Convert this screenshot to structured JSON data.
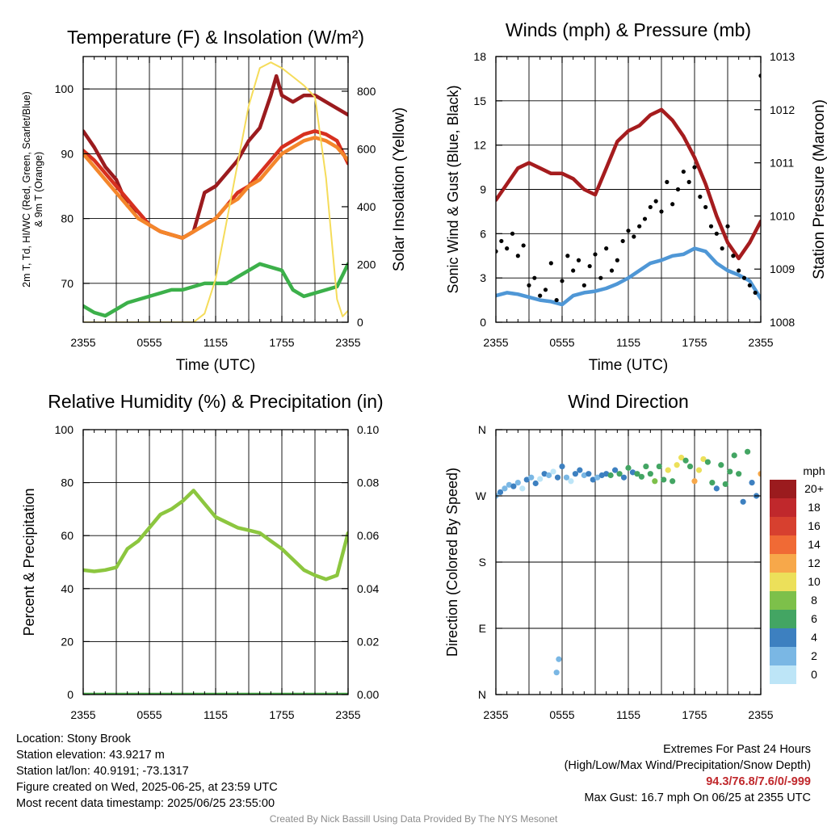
{
  "chart_data": [
    {
      "id": "temperature",
      "type": "line",
      "title": "Temperature (F) & Insolation (W/m²)",
      "xlabel": "Time (UTC)",
      "ylabel": "2m T, Td, HI/WC (Red, Green, Scarlet/Blue) & 9m T (Orange)",
      "y2label": "Solar Insolation (Yellow)",
      "xlim": [
        0,
        24
      ],
      "ylim": [
        64,
        105
      ],
      "y2lim": [
        0,
        920
      ],
      "xticks": [
        0,
        6,
        12,
        18,
        24
      ],
      "xtick_labels": [
        "2355",
        "0555",
        "1155",
        "1755",
        "2355"
      ],
      "yticks": [
        70,
        80,
        90,
        100
      ],
      "y2ticks": [
        0,
        200,
        400,
        600,
        800
      ],
      "grid": true,
      "series": [
        {
          "color": "#9b1b1e",
          "axis": "left",
          "x": [
            0,
            1,
            2,
            3,
            3.5,
            4,
            5,
            6,
            7,
            8,
            9,
            10,
            11,
            12,
            13,
            14,
            15,
            16,
            17,
            17.5,
            18,
            19,
            20,
            21,
            22,
            23,
            24
          ],
          "y": [
            93.5,
            91,
            88,
            86,
            84,
            82,
            81,
            79,
            78,
            77.5,
            77,
            78,
            84,
            85,
            87,
            89,
            92,
            94,
            99,
            102,
            99,
            98,
            99,
            99,
            98,
            97,
            96
          ]
        },
        {
          "color": "#d7301f",
          "axis": "left",
          "x": [
            0,
            1,
            2,
            3,
            4,
            5,
            6,
            7,
            8,
            9,
            10,
            11,
            12,
            13,
            14,
            15,
            16,
            17,
            18,
            19,
            20,
            21,
            22,
            23,
            24
          ],
          "y": [
            90.5,
            89,
            87,
            85,
            83,
            81,
            79,
            78,
            77.5,
            77,
            78,
            79,
            80,
            82,
            84,
            85,
            87,
            89,
            91,
            92,
            93,
            93.5,
            93,
            92,
            88.5
          ]
        },
        {
          "color": "#f4862b",
          "axis": "left",
          "x": [
            0,
            1,
            2,
            3,
            4,
            5,
            6,
            7,
            8,
            9,
            10,
            11,
            12,
            13,
            14,
            15,
            16,
            17,
            18,
            19,
            20,
            21,
            22,
            23,
            24
          ],
          "y": [
            90,
            88,
            86,
            84,
            82,
            80,
            79,
            78,
            77.5,
            77,
            78,
            79,
            80,
            82,
            83,
            85,
            86,
            88,
            90,
            91,
            92,
            92.5,
            92,
            91,
            89
          ]
        },
        {
          "color": "#3cb04a",
          "axis": "left",
          "x": [
            0,
            1,
            2,
            3,
            4,
            5,
            6,
            7,
            8,
            9,
            10,
            11,
            12,
            13,
            14,
            15,
            16,
            17,
            18,
            19,
            20,
            21,
            22,
            23,
            24
          ],
          "y": [
            66.5,
            65.5,
            65,
            66,
            67,
            67.5,
            68,
            68.5,
            69,
            69,
            69.5,
            70,
            70,
            70,
            71,
            72,
            73,
            72.5,
            72,
            69,
            68,
            68.5,
            69,
            69.5,
            73
          ]
        },
        {
          "color": "#f5dc5a",
          "axis": "right",
          "x": [
            0,
            8,
            9,
            10,
            11,
            12,
            13,
            14,
            15,
            16,
            17,
            18,
            19,
            20,
            21,
            22,
            23,
            23.5,
            24
          ],
          "y": [
            0,
            0,
            0,
            0,
            30,
            150,
            350,
            550,
            750,
            880,
            900,
            880,
            850,
            820,
            780,
            500,
            80,
            20,
            40
          ]
        }
      ]
    },
    {
      "id": "winds",
      "type": "line",
      "title": "Winds (mph) & Pressure (mb)",
      "xlabel": "Time (UTC)",
      "ylabel": "Sonic Wind & Gust (Blue, Black)",
      "y2label": "Station Pressure (Maroon)",
      "xlim": [
        0,
        24
      ],
      "ylim": [
        0,
        18
      ],
      "y2lim": [
        1008,
        1013
      ],
      "xticks": [
        0,
        6,
        12,
        18,
        24
      ],
      "xtick_labels": [
        "2355",
        "0555",
        "1155",
        "1755",
        "2355"
      ],
      "yticks": [
        0,
        3,
        6,
        9,
        12,
        15,
        18
      ],
      "y2ticks": [
        1008,
        1009,
        1010,
        1011,
        1012,
        1013
      ],
      "grid": true,
      "series": [
        {
          "color": "#a51c1e",
          "axis": "right",
          "x": [
            0,
            1,
            2,
            3,
            4,
            5,
            6,
            7,
            8,
            9,
            10,
            11,
            12,
            13,
            14,
            15,
            16,
            17,
            18,
            19,
            20,
            21,
            22,
            23,
            24
          ],
          "y": [
            1010.3,
            1010.6,
            1010.9,
            1011.0,
            1010.9,
            1010.8,
            1010.8,
            1010.7,
            1010.5,
            1010.4,
            1010.9,
            1011.4,
            1011.6,
            1011.7,
            1011.9,
            1012.0,
            1011.8,
            1011.5,
            1011.1,
            1010.6,
            1010.0,
            1009.5,
            1009.2,
            1009.5,
            1009.9
          ]
        },
        {
          "color": "#4f97d6",
          "axis": "left",
          "x": [
            0,
            1,
            2,
            3,
            4,
            5,
            6,
            7,
            8,
            9,
            10,
            11,
            12,
            13,
            14,
            15,
            16,
            17,
            18,
            19,
            20,
            21,
            22,
            23,
            24
          ],
          "y": [
            1.8,
            2.0,
            1.9,
            1.7,
            1.5,
            1.4,
            1.2,
            1.8,
            2.0,
            2.1,
            2.3,
            2.6,
            3.0,
            3.5,
            4.0,
            4.2,
            4.5,
            4.6,
            5.0,
            4.8,
            4.0,
            3.5,
            3.2,
            2.8,
            1.6
          ]
        },
        {
          "color": "#000000",
          "axis": "left",
          "style": "points",
          "x": [
            0,
            0.5,
            1,
            1.5,
            2,
            2.5,
            3,
            3.5,
            4,
            4.5,
            5,
            5.5,
            6,
            6.5,
            7,
            7.5,
            8,
            8.5,
            9,
            9.5,
            10,
            10.5,
            11,
            11.5,
            12,
            12.5,
            13,
            13.5,
            14,
            14.5,
            15,
            15.5,
            16,
            16.5,
            17,
            17.5,
            18,
            18.5,
            19,
            19.5,
            20,
            20.5,
            21,
            21.5,
            22,
            22.5,
            23,
            23.5,
            24
          ],
          "y": [
            4.8,
            5.5,
            5.0,
            6.0,
            4.5,
            5.2,
            2.5,
            3.0,
            1.8,
            2.2,
            4.0,
            1.5,
            2.8,
            4.5,
            3.5,
            4.2,
            2.5,
            3.8,
            4.6,
            3.0,
            5.0,
            3.5,
            4.2,
            5.5,
            6.2,
            5.8,
            6.5,
            7.0,
            7.8,
            8.2,
            7.5,
            9.5,
            8.0,
            9.0,
            10.2,
            9.5,
            10.5,
            8.5,
            7.8,
            6.5,
            6.0,
            5.0,
            6.5,
            4.5,
            3.5,
            3.0,
            2.5,
            2.0,
            16.7
          ]
        }
      ]
    },
    {
      "id": "humidity",
      "type": "line",
      "title": "Relative Humidity (%) & Precipitation (in)",
      "xlabel": "",
      "ylabel": "Percent & Precipitation",
      "xlim": [
        0,
        24
      ],
      "ylim": [
        0,
        100
      ],
      "y2lim": [
        0,
        0.1
      ],
      "xticks": [
        0,
        6,
        12,
        18,
        24
      ],
      "xtick_labels": [
        "2355",
        "0555",
        "1155",
        "1755",
        "2355"
      ],
      "yticks": [
        0,
        20,
        40,
        60,
        80,
        100
      ],
      "y2ticks": [
        0,
        0.02,
        0.04,
        0.06,
        0.08,
        0.1
      ],
      "y2tick_labels": [
        "0.00",
        "0.02",
        "0.04",
        "0.06",
        "0.08",
        "0.10"
      ],
      "grid": true,
      "series": [
        {
          "color": "#8cc63f",
          "axis": "left",
          "x": [
            0,
            1,
            2,
            3,
            4,
            5,
            6,
            7,
            8,
            9,
            10,
            11,
            12,
            13,
            14,
            15,
            16,
            17,
            18,
            19,
            20,
            21,
            22,
            23,
            24
          ],
          "y": [
            47,
            46.5,
            47,
            48,
            55,
            58,
            63,
            68,
            70,
            73,
            77,
            72,
            67,
            65,
            63,
            62,
            61,
            58,
            55,
            51,
            47,
            45,
            43.5,
            45,
            61
          ]
        },
        {
          "color": "#4aaa4a",
          "axis": "right",
          "x": [
            0,
            24
          ],
          "y": [
            0,
            0
          ]
        }
      ]
    },
    {
      "id": "direction",
      "type": "scatter",
      "title": "Wind Direction",
      "xlabel": "",
      "ylabel": "Direction (Colored By Speed)",
      "xlim": [
        0,
        24
      ],
      "ylim": [
        0,
        360
      ],
      "xticks": [
        0,
        6,
        12,
        18,
        24
      ],
      "xtick_labels": [
        "2355",
        "0555",
        "1155",
        "1755",
        "2355"
      ],
      "yticks": [
        0,
        90,
        180,
        270,
        360
      ],
      "ytick_labels": [
        "N",
        "E",
        "S",
        "W",
        "N"
      ],
      "grid": true,
      "legend_title": "mph",
      "legend_labels": [
        "20+",
        "18",
        "16",
        "14",
        "12",
        "10",
        "8",
        "6",
        "4",
        "2",
        "0"
      ],
      "legend_colors": [
        "#9b1b1e",
        "#c0282c",
        "#d7402f",
        "#f06a35",
        "#f7a84a",
        "#ece05a",
        "#7dc04a",
        "#43a563",
        "#3d80c0",
        "#7ab7e4",
        "#bde5f7"
      ],
      "series": [
        {
          "x": [
            0,
            0.4,
            0.8,
            1.2,
            1.6,
            2.0,
            2.4,
            2.8,
            3.2,
            3.6,
            4.0,
            4.4,
            4.8,
            5.2,
            5.6,
            6.0,
            6.4,
            6.8,
            7.2,
            7.6,
            8.0,
            8.4,
            8.8,
            9.2,
            9.6,
            10.0,
            10.4,
            10.8,
            11.2,
            11.6,
            12.0,
            12.4,
            12.8,
            13.2,
            13.6,
            14.0,
            14.4,
            14.8,
            15.2,
            15.6,
            16.0,
            16.4,
            16.8,
            17.2,
            17.6,
            18.0,
            18.4,
            18.8,
            19.2,
            19.6,
            20.0,
            20.4,
            20.8,
            21.2,
            21.6,
            22.0,
            22.4,
            22.8,
            23.2,
            23.6,
            24.0,
            5.5,
            5.7
          ],
          "y": [
            270,
            275,
            280,
            285,
            283,
            288,
            280,
            292,
            295,
            287,
            293,
            300,
            298,
            303,
            295,
            310,
            295,
            290,
            300,
            305,
            298,
            300,
            292,
            295,
            298,
            300,
            298,
            305,
            300,
            295,
            308,
            302,
            300,
            296,
            310,
            300,
            290,
            310,
            292,
            305,
            290,
            312,
            322,
            318,
            310,
            290,
            305,
            320,
            316,
            288,
            280,
            312,
            286,
            303,
            325,
            300,
            262,
            330,
            288,
            270,
            300,
            30,
            48
          ],
          "s": [
            1,
            2,
            1,
            1,
            2,
            1,
            0,
            2,
            1,
            2,
            0,
            2,
            1,
            0,
            2,
            2,
            1,
            0,
            2,
            2,
            1,
            2,
            2,
            1,
            2,
            2,
            3,
            2,
            3,
            2,
            3,
            2,
            3,
            3,
            3,
            3,
            4,
            3,
            3,
            5,
            3,
            5,
            5,
            3,
            3,
            6,
            5,
            5,
            3,
            3,
            2,
            3,
            3,
            3,
            3,
            3,
            2,
            3,
            2,
            2,
            6,
            1,
            1
          ]
        }
      ]
    }
  ],
  "footer": {
    "location": "Location: Stony Brook",
    "elevation": "Station elevation: 43.9217 m",
    "latlon": "Station lat/lon: 40.9191; -73.1317",
    "created": "Figure created on Wed, 2025-06-25, at 23:59 UTC",
    "recent": "Most recent data timestamp: 2025/06/25 23:55:00",
    "extremes_title": "Extremes For Past 24 Hours",
    "extremes_sub": "(High/Low/Max Wind/Precipitation/Snow Depth)",
    "extremes_values": "94.3/76.8/7.6/0/-999",
    "max_gust": "Max Gust: 16.7 mph On 06/25 at 2355 UTC",
    "credit": "Created By Nick Bassill Using Data Provided By The NYS Mesonet"
  }
}
